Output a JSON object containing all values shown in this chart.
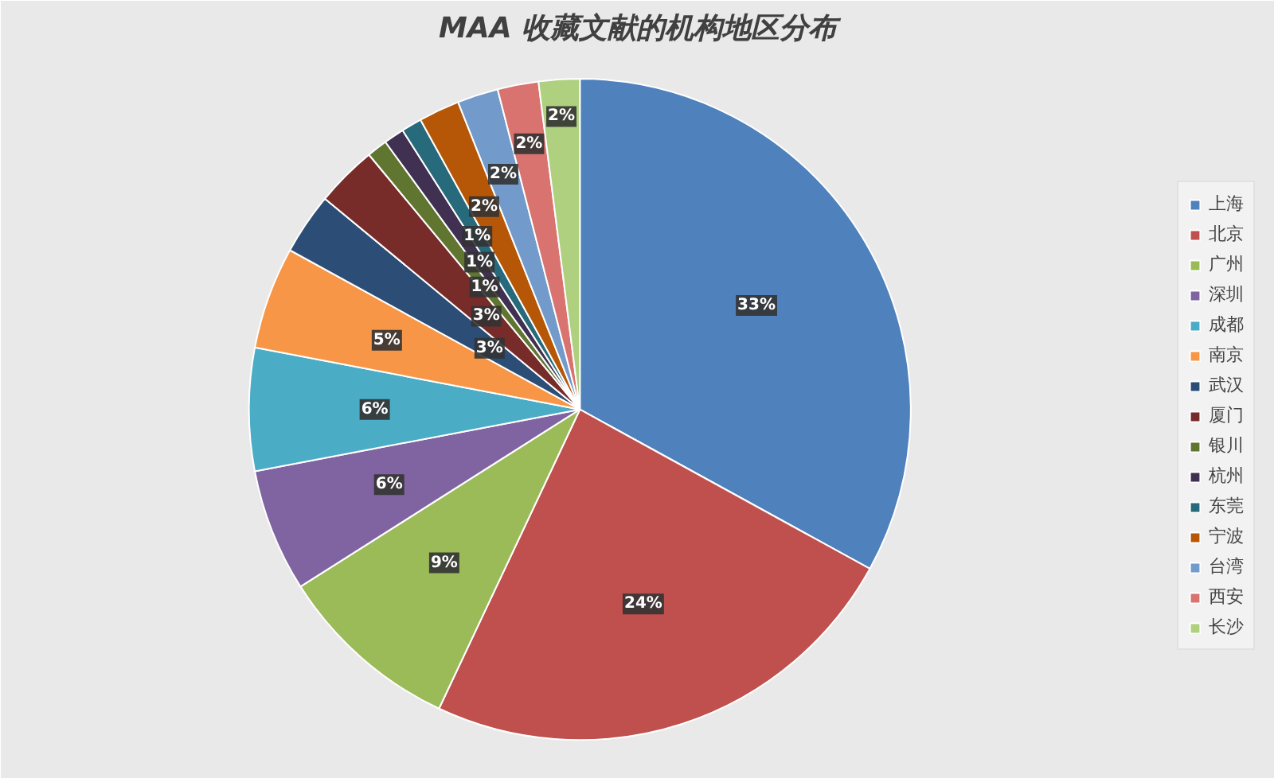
{
  "chart_data": {
    "type": "pie",
    "title": "MAA 收藏文献的机构地区分布",
    "categories": [
      "上海",
      "北京",
      "广州",
      "深圳",
      "成都",
      "南京",
      "武汉",
      "厦门",
      "银川",
      "杭州",
      "东莞",
      "宁波",
      "台湾",
      "西安",
      "长沙"
    ],
    "values": [
      33,
      24,
      9,
      6,
      6,
      5,
      3,
      3,
      1,
      1,
      1,
      2,
      2,
      2,
      2
    ],
    "colors": [
      "#4f81bd",
      "#c0504d",
      "#9bbb59",
      "#8064a2",
      "#4bacc6",
      "#f79646",
      "#2c4d75",
      "#772c2a",
      "#5f7530",
      "#403152",
      "#276a7c",
      "#b65708",
      "#729aca",
      "#d9736f",
      "#afd07f"
    ],
    "value_labels": [
      "33%",
      "24%",
      "9%",
      "6%",
      "6%",
      "5%",
      "3%",
      "3%",
      "1%",
      "1%",
      "1%",
      "2%",
      "2%",
      "2%",
      "2%"
    ],
    "legend": "right"
  }
}
